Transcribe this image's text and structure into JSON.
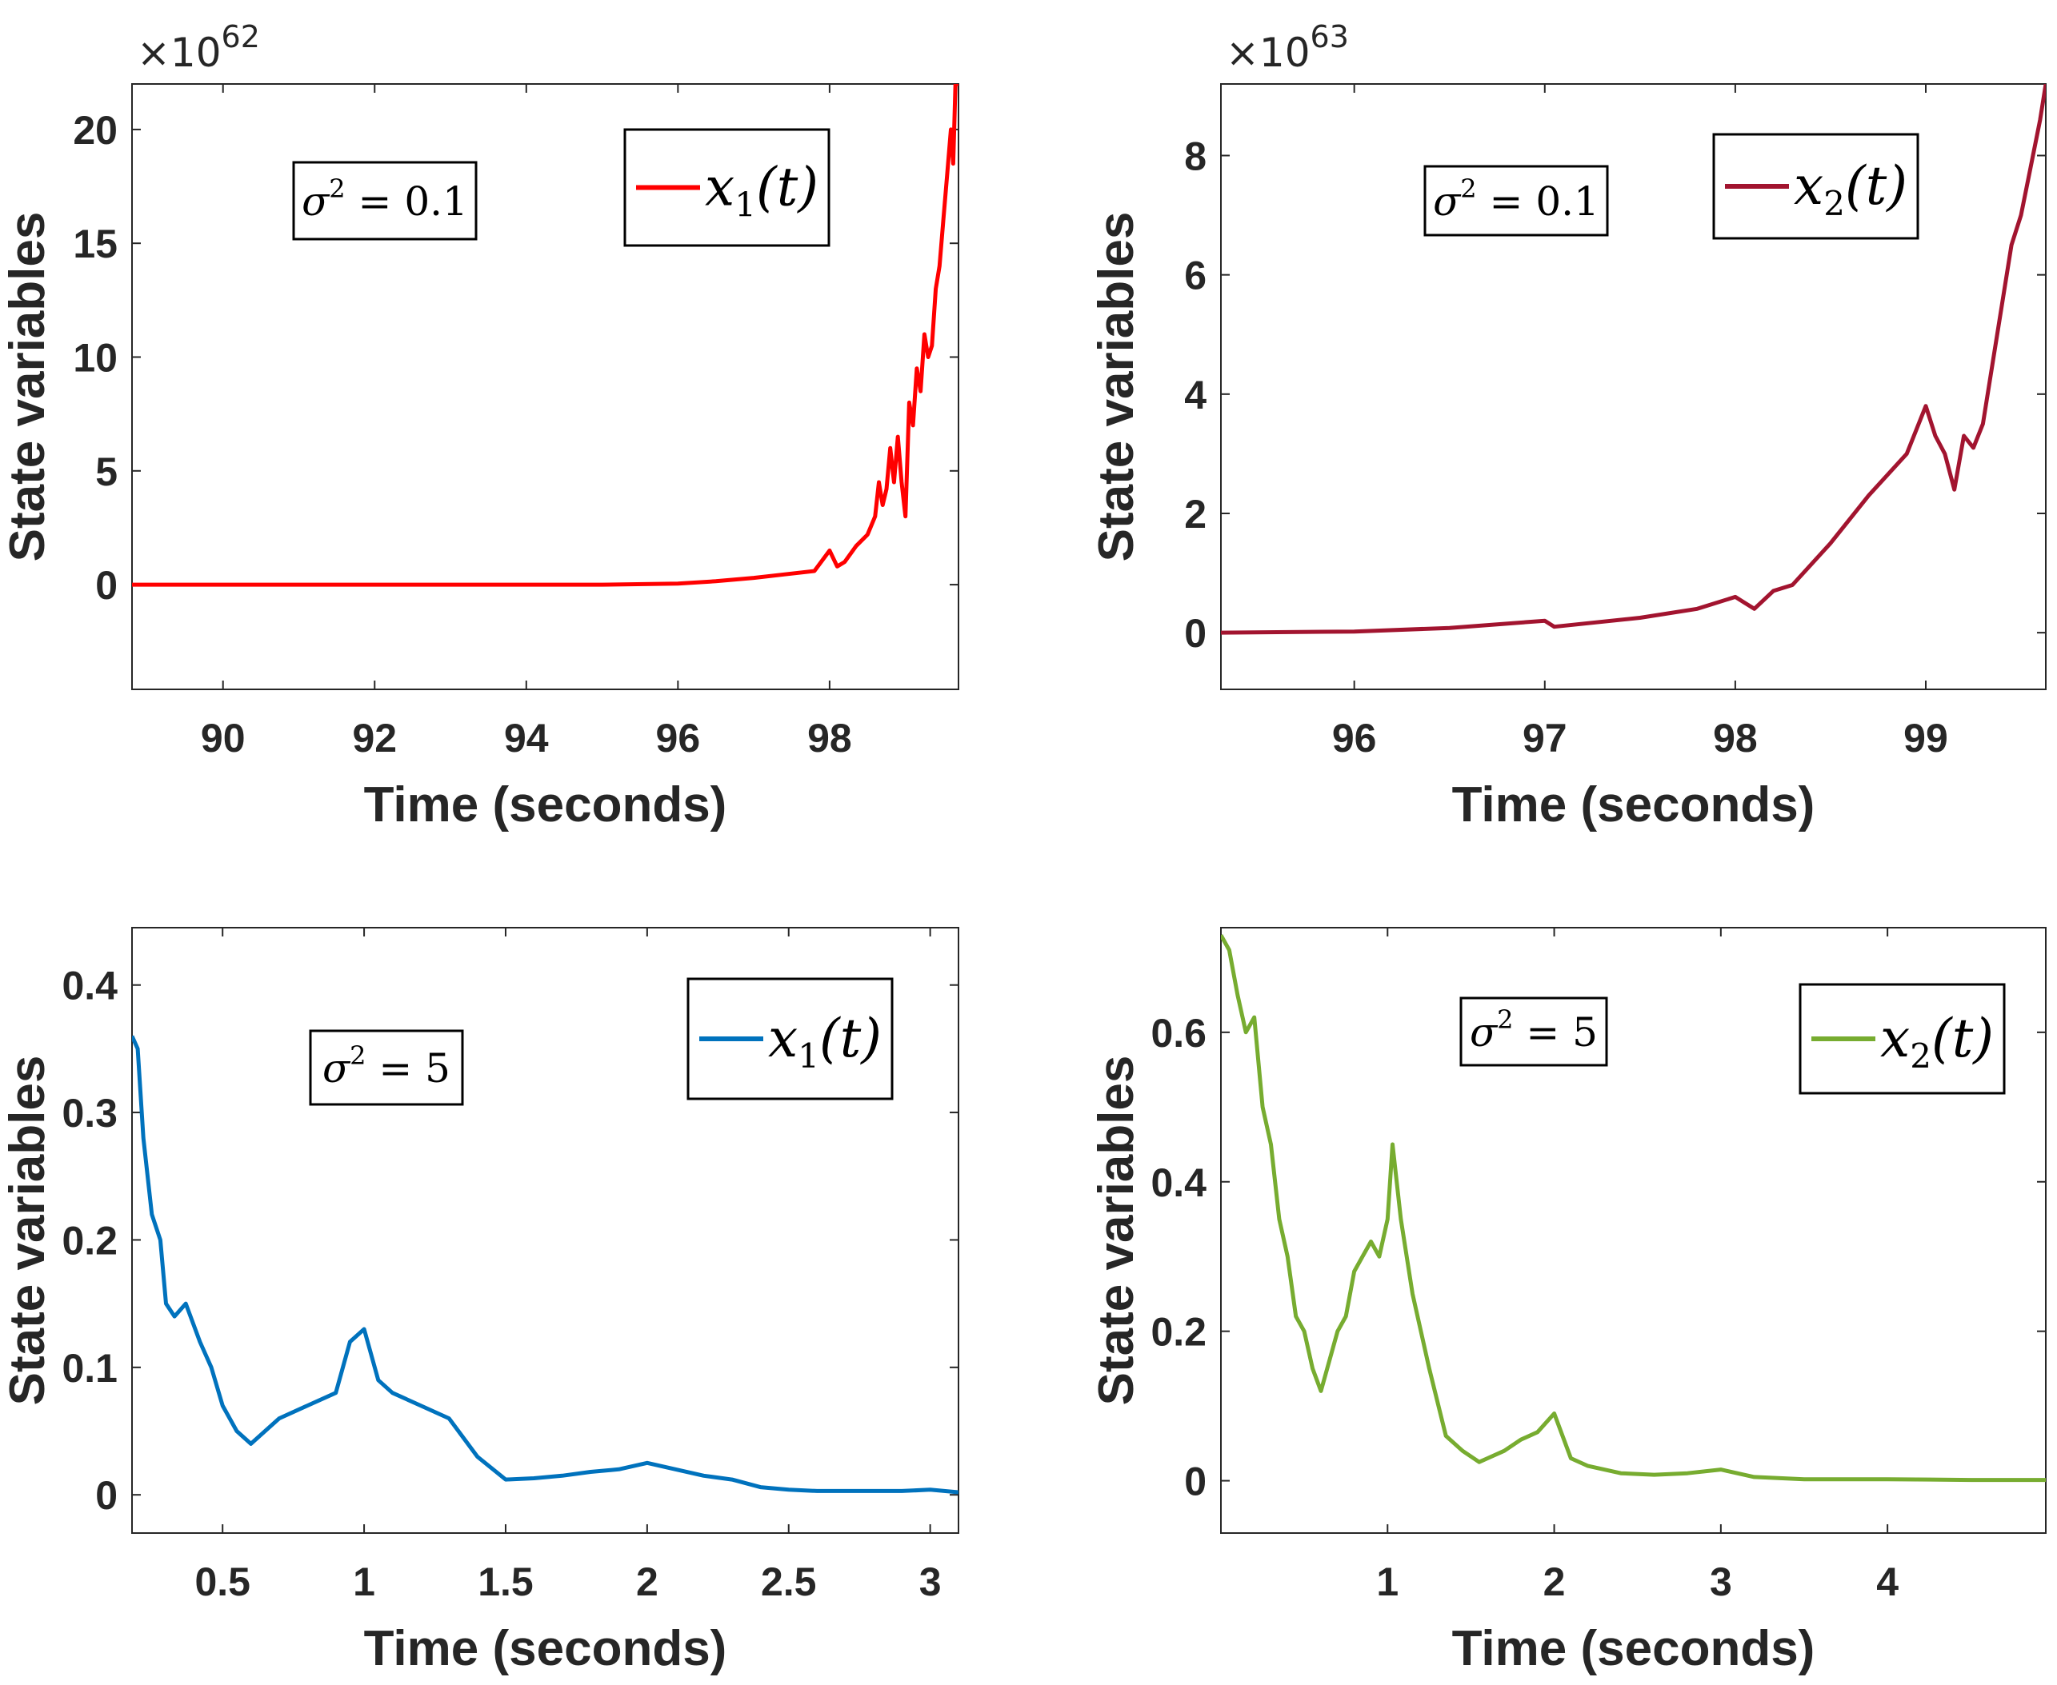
{
  "chart_data": [
    {
      "type": "line",
      "panel": "top-left",
      "xlabel": "Time (seconds)",
      "ylabel": "State variables",
      "xlim": [
        88.8,
        99.7
      ],
      "ylim": [
        -4.6,
        22
      ],
      "xticks": [
        90,
        92,
        94,
        96,
        98
      ],
      "xtick_labels": [
        "90",
        "92",
        "94",
        "96",
        "98"
      ],
      "yticks": [
        0,
        5,
        10,
        15,
        20
      ],
      "ytick_labels": [
        "0",
        "5",
        "10",
        "15",
        "20"
      ],
      "y_multiplier": "×10",
      "y_exponent": "62",
      "annotation": {
        "text": "σ² = 0.1",
        "sym": "σ",
        "sup": "2",
        "rest": " = 0.1"
      },
      "legend": {
        "label": "x₁(t)",
        "var": "x",
        "sub": "1",
        "tail": "(t)",
        "position": "top-right"
      },
      "series": [
        {
          "name": "x₁(t)",
          "color": "#ff0000",
          "x": [
            88.8,
            92,
            95,
            96,
            96.5,
            97,
            97.4,
            97.8,
            98.0,
            98.1,
            98.2,
            98.35,
            98.5,
            98.6,
            98.65,
            98.7,
            98.75,
            98.8,
            98.85,
            98.9,
            98.95,
            99.0,
            99.05,
            99.1,
            99.15,
            99.2,
            99.25,
            99.3,
            99.35,
            99.4,
            99.45,
            99.5,
            99.55,
            99.6,
            99.63,
            99.66,
            99.7
          ],
          "y": [
            0,
            0,
            0,
            0.05,
            0.15,
            0.3,
            0.45,
            0.6,
            1.5,
            0.8,
            1.0,
            1.7,
            2.2,
            3.0,
            4.5,
            3.5,
            4.2,
            6.0,
            4.5,
            6.5,
            4.5,
            3.0,
            8.0,
            7.0,
            9.5,
            8.5,
            11.0,
            10.0,
            10.5,
            13.0,
            14.0,
            16.0,
            18.0,
            20.0,
            18.5,
            22.0,
            22.0
          ]
        }
      ]
    },
    {
      "type": "line",
      "panel": "top-right",
      "xlabel": "Time (seconds)",
      "ylabel": "State variables",
      "xlim": [
        95.3,
        99.63
      ],
      "ylim": [
        -0.95,
        9.2
      ],
      "xticks": [
        96,
        97,
        98,
        99
      ],
      "xtick_labels": [
        "96",
        "97",
        "98",
        "99"
      ],
      "yticks": [
        0,
        2,
        4,
        6,
        8
      ],
      "ytick_labels": [
        "0",
        "2",
        "4",
        "6",
        "8"
      ],
      "y_multiplier": "×10",
      "y_exponent": "63",
      "annotation": {
        "text": "σ² = 0.1",
        "sym": "σ",
        "sup": "2",
        "rest": " = 0.1"
      },
      "legend": {
        "label": "x₂(t)",
        "var": "x",
        "sub": "2",
        "tail": "(t)",
        "position": "top-right"
      },
      "series": [
        {
          "name": "x₂(t)",
          "color": "#a2142f",
          "x": [
            95.3,
            96.0,
            96.5,
            97.0,
            97.05,
            97.5,
            97.8,
            98.0,
            98.05,
            98.1,
            98.2,
            98.3,
            98.5,
            98.7,
            98.9,
            99.0,
            99.05,
            99.1,
            99.15,
            99.2,
            99.25,
            99.3,
            99.35,
            99.4,
            99.45,
            99.5,
            99.55,
            99.6,
            99.63
          ],
          "y": [
            0,
            0.02,
            0.08,
            0.2,
            0.1,
            0.25,
            0.4,
            0.6,
            0.5,
            0.4,
            0.7,
            0.8,
            1.5,
            2.3,
            3.0,
            3.8,
            3.3,
            3.0,
            2.4,
            3.3,
            3.1,
            3.5,
            4.5,
            5.5,
            6.5,
            7.0,
            7.8,
            8.6,
            9.2
          ]
        }
      ]
    },
    {
      "type": "line",
      "panel": "bottom-left",
      "xlabel": "Time (seconds)",
      "ylabel": "State variables",
      "xlim": [
        0.18,
        3.1
      ],
      "ylim": [
        -0.03,
        0.445
      ],
      "xticks": [
        0.5,
        1,
        1.5,
        2,
        2.5,
        3
      ],
      "xtick_labels": [
        "0.5",
        "1",
        "1.5",
        "2",
        "2.5",
        "3"
      ],
      "yticks": [
        0,
        0.1,
        0.2,
        0.3,
        0.4
      ],
      "ytick_labels": [
        "0",
        "0.1",
        "0.2",
        "0.3",
        "0.4"
      ],
      "annotation": {
        "text": "σ² = 5",
        "sym": "σ",
        "sup": "2",
        "rest": " = 5"
      },
      "legend": {
        "label": "x₁(t)",
        "var": "x",
        "sub": "1",
        "tail": "(t)",
        "position": "top-right"
      },
      "series": [
        {
          "name": "x₁(t)",
          "color": "#0072bd",
          "x": [
            0.18,
            0.2,
            0.22,
            0.25,
            0.28,
            0.3,
            0.33,
            0.37,
            0.42,
            0.46,
            0.5,
            0.55,
            0.6,
            0.7,
            0.8,
            0.9,
            0.95,
            1.0,
            1.05,
            1.1,
            1.2,
            1.3,
            1.4,
            1.5,
            1.6,
            1.7,
            1.8,
            1.9,
            2.0,
            2.1,
            2.2,
            2.3,
            2.4,
            2.5,
            2.6,
            2.7,
            2.8,
            2.9,
            3.0,
            3.1
          ],
          "y": [
            0.36,
            0.35,
            0.28,
            0.22,
            0.2,
            0.15,
            0.14,
            0.15,
            0.12,
            0.1,
            0.07,
            0.05,
            0.04,
            0.06,
            0.07,
            0.08,
            0.12,
            0.13,
            0.09,
            0.08,
            0.07,
            0.06,
            0.03,
            0.012,
            0.013,
            0.015,
            0.018,
            0.02,
            0.025,
            0.02,
            0.015,
            0.012,
            0.006,
            0.004,
            0.003,
            0.003,
            0.003,
            0.003,
            0.004,
            0.002
          ]
        }
      ]
    },
    {
      "type": "line",
      "panel": "bottom-right",
      "xlabel": "Time (seconds)",
      "ylabel": "State variables",
      "xlim": [
        0.0,
        4.95
      ],
      "ylim": [
        -0.07,
        0.74
      ],
      "xticks": [
        1,
        2,
        3,
        4
      ],
      "xtick_labels": [
        "1",
        "2",
        "3",
        "4"
      ],
      "yticks": [
        0,
        0.2,
        0.4,
        0.6
      ],
      "ytick_labels": [
        "0",
        "0.2",
        "0.4",
        "0.6"
      ],
      "annotation": {
        "text": "σ² = 5",
        "sym": "σ",
        "sup": "2",
        "rest": " = 5"
      },
      "legend": {
        "label": "x₂(t)",
        "var": "x",
        "sub": "2",
        "tail": "(t)",
        "position": "top-right"
      },
      "series": [
        {
          "name": "x₂(t)",
          "color": "#77ac30",
          "x": [
            0.0,
            0.05,
            0.1,
            0.15,
            0.2,
            0.25,
            0.3,
            0.35,
            0.4,
            0.45,
            0.5,
            0.55,
            0.6,
            0.7,
            0.75,
            0.8,
            0.85,
            0.9,
            0.95,
            1.0,
            1.03,
            1.08,
            1.15,
            1.25,
            1.35,
            1.45,
            1.55,
            1.6,
            1.7,
            1.8,
            1.9,
            2.0,
            2.05,
            2.1,
            2.2,
            2.4,
            2.6,
            2.8,
            3.0,
            3.2,
            3.5,
            4.0,
            4.5,
            4.95
          ],
          "y": [
            0.73,
            0.71,
            0.65,
            0.6,
            0.62,
            0.5,
            0.45,
            0.35,
            0.3,
            0.22,
            0.2,
            0.15,
            0.12,
            0.2,
            0.22,
            0.28,
            0.3,
            0.32,
            0.3,
            0.35,
            0.45,
            0.35,
            0.25,
            0.15,
            0.06,
            0.04,
            0.025,
            0.03,
            0.04,
            0.055,
            0.065,
            0.09,
            0.06,
            0.03,
            0.02,
            0.01,
            0.008,
            0.01,
            0.015,
            0.005,
            0.002,
            0.002,
            0.001,
            0.001
          ]
        }
      ]
    }
  ]
}
